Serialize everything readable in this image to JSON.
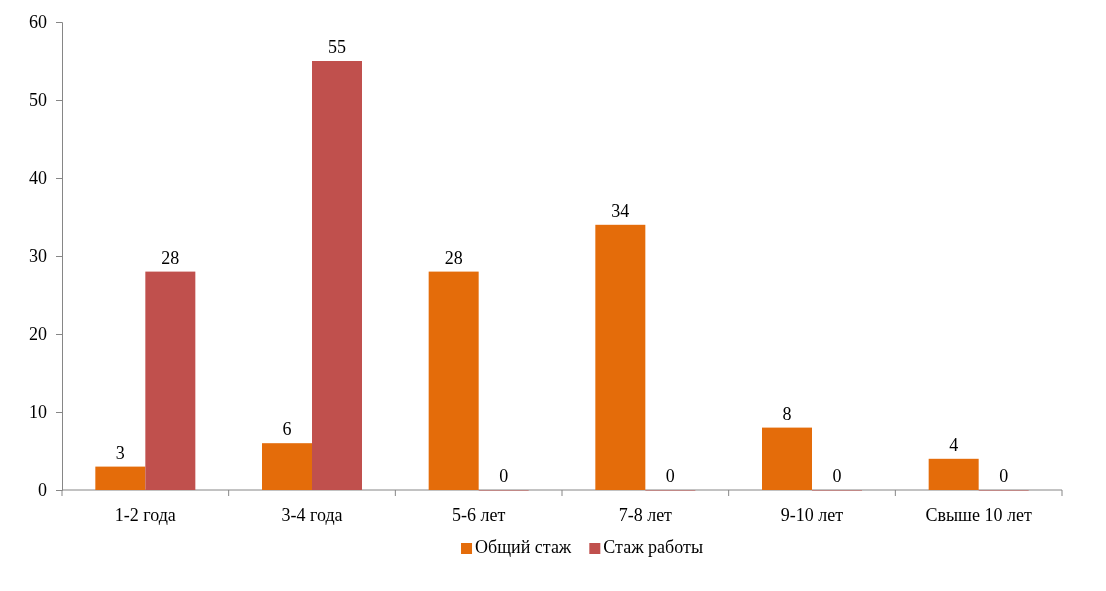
{
  "chart_data": {
    "type": "bar",
    "categories": [
      "1-2 года",
      "3-4 года",
      "5-6 лет",
      "7-8 лет",
      "9-10 лет",
      "Свыше 10 лет"
    ],
    "series": [
      {
        "name": "Общий стаж",
        "color": "#e46c0a",
        "values": [
          3,
          6,
          28,
          34,
          8,
          4
        ]
      },
      {
        "name": "Стаж работы",
        "color": "#c0504d",
        "values": [
          28,
          55,
          0,
          0,
          0,
          0
        ]
      }
    ],
    "ylim": [
      0,
      60
    ],
    "yticks": [
      0,
      10,
      20,
      30,
      40,
      50,
      60
    ],
    "grid": false,
    "legend": "bottom",
    "data_labels": true
  }
}
